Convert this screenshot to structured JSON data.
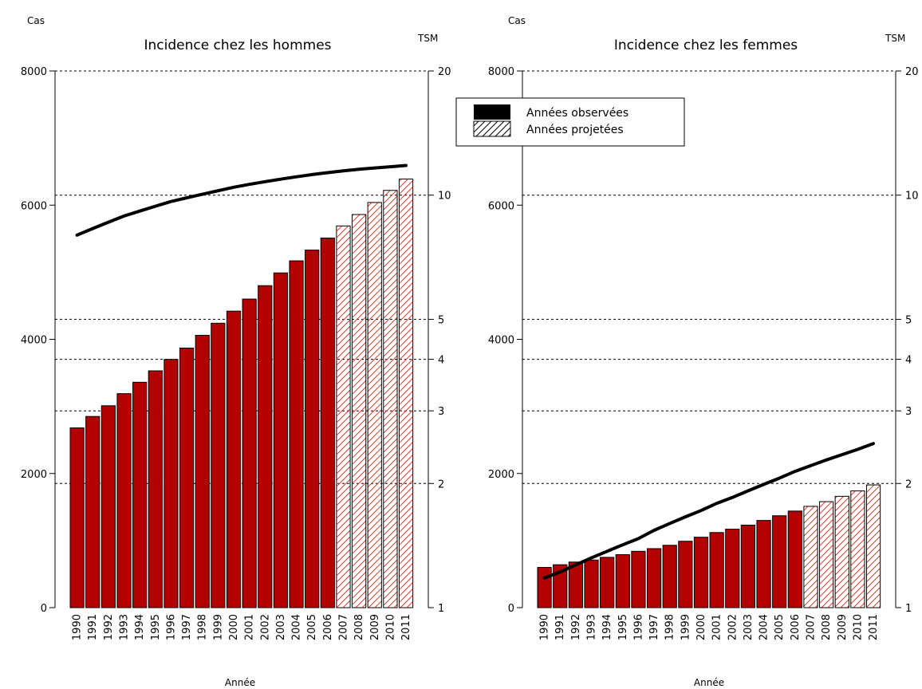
{
  "chart_data": [
    {
      "type": "bar",
      "title": "Incidence chez les hommes",
      "ylabel_left": "Cas",
      "ylabel_right": "TSM",
      "xlabel": "Année",
      "categories": [
        "1990",
        "1991",
        "1992",
        "1993",
        "1994",
        "1995",
        "1996",
        "1997",
        "1998",
        "1999",
        "2000",
        "2001",
        "2002",
        "2003",
        "2004",
        "2005",
        "2006",
        "2007",
        "2008",
        "2009",
        "2010",
        "2011"
      ],
      "series": [
        {
          "name": "Années observées",
          "years": [
            "1990",
            "1991",
            "1992",
            "1993",
            "1994",
            "1995",
            "1996",
            "1997",
            "1998",
            "1999",
            "2000",
            "2001",
            "2002",
            "2003",
            "2004",
            "2005",
            "2006"
          ]
        },
        {
          "name": "Années projetées",
          "years": [
            "2007",
            "2008",
            "2009",
            "2010",
            "2011"
          ]
        }
      ],
      "values": [
        2680,
        2850,
        3010,
        3190,
        3360,
        3530,
        3700,
        3870,
        4060,
        4240,
        4420,
        4600,
        4800,
        4990,
        5170,
        5330,
        5510,
        5690,
        5860,
        6040,
        6220,
        6390
      ],
      "tsm_line": [
        8.0,
        8.3,
        8.6,
        8.9,
        9.15,
        9.4,
        9.65,
        9.85,
        10.05,
        10.25,
        10.45,
        10.62,
        10.78,
        10.93,
        11.08,
        11.22,
        11.34,
        11.45,
        11.55,
        11.64,
        11.72,
        11.8
      ],
      "ylim_left": [
        0,
        8000
      ],
      "yticks_left": [
        0,
        2000,
        4000,
        6000,
        8000
      ],
      "ylim_right": [
        1,
        20
      ],
      "yticks_right": [
        1,
        2,
        3,
        4,
        5,
        10,
        20
      ],
      "right_scale": "log",
      "gridlines": "dashed at right-axis ticks"
    },
    {
      "type": "bar",
      "title": "Incidence chez les femmes",
      "ylabel_left": "Cas",
      "ylabel_right": "TSM",
      "xlabel": "Année",
      "categories": [
        "1990",
        "1991",
        "1992",
        "1993",
        "1994",
        "1995",
        "1996",
        "1997",
        "1998",
        "1999",
        "2000",
        "2001",
        "2002",
        "2003",
        "2004",
        "2005",
        "2006",
        "2007",
        "2008",
        "2009",
        "2010",
        "2011"
      ],
      "series": [
        {
          "name": "Années observées",
          "years": [
            "1990",
            "1991",
            "1992",
            "1993",
            "1994",
            "1995",
            "1996",
            "1997",
            "1998",
            "1999",
            "2000",
            "2001",
            "2002",
            "2003",
            "2004",
            "2005",
            "2006"
          ]
        },
        {
          "name": "Années projetées",
          "years": [
            "2007",
            "2008",
            "2009",
            "2010",
            "2011"
          ]
        }
      ],
      "values": [
        600,
        640,
        680,
        710,
        750,
        790,
        840,
        880,
        930,
        990,
        1050,
        1120,
        1170,
        1230,
        1300,
        1370,
        1440,
        1510,
        1580,
        1660,
        1740,
        1830
      ],
      "tsm_line": [
        1.18,
        1.22,
        1.27,
        1.32,
        1.37,
        1.42,
        1.47,
        1.54,
        1.6,
        1.66,
        1.72,
        1.79,
        1.85,
        1.92,
        1.99,
        2.06,
        2.14,
        2.21,
        2.28,
        2.35,
        2.42,
        2.5
      ],
      "ylim_left": [
        0,
        8000
      ],
      "yticks_left": [
        0,
        2000,
        4000,
        6000,
        8000
      ],
      "ylim_right": [
        1,
        20
      ],
      "yticks_right": [
        1,
        2,
        3,
        4,
        5,
        10,
        20
      ],
      "right_scale": "log",
      "gridlines": "dashed at right-axis ticks"
    }
  ],
  "legend": {
    "placement": "top-left of right panel",
    "items": [
      {
        "label": "Années observées",
        "style": "solid-black"
      },
      {
        "label": "Années projetées",
        "style": "hatched"
      }
    ]
  },
  "colors": {
    "observed_bar": "#b30000",
    "projected_hatch": "#ff3333",
    "line": "#000000",
    "grid": "#000000"
  }
}
